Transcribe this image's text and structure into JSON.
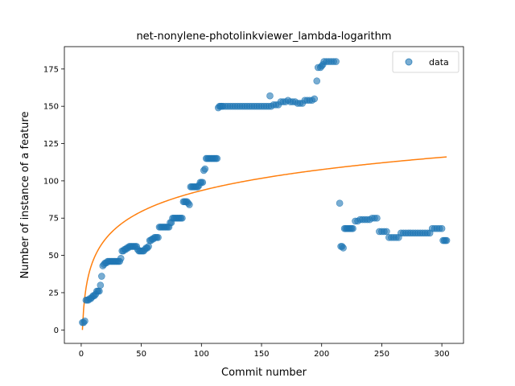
{
  "chart_data": {
    "type": "scatter",
    "title": "net-nonylene-photolinkviewer_lambda-logarithm",
    "xlabel": "Commit number",
    "ylabel": "Number of instance of a feature",
    "xlim": [
      -14,
      318
    ],
    "ylim": [
      -9,
      190
    ],
    "xticks": [
      0,
      50,
      100,
      150,
      200,
      250,
      300
    ],
    "yticks": [
      0,
      25,
      50,
      75,
      100,
      125,
      150,
      175
    ],
    "grid": false,
    "legend": {
      "position": "top-right",
      "entries": [
        "data"
      ]
    },
    "colors": {
      "points": "#1f77b4",
      "fit": "#ff7f0e"
    },
    "series": [
      {
        "name": "data",
        "kind": "points",
        "points": [
          [
            1,
            5
          ],
          [
            2,
            5
          ],
          [
            3,
            6
          ],
          [
            4,
            20
          ],
          [
            5,
            20
          ],
          [
            6,
            20
          ],
          [
            7,
            21
          ],
          [
            8,
            21
          ],
          [
            9,
            22
          ],
          [
            10,
            23
          ],
          [
            11,
            23
          ],
          [
            12,
            24
          ],
          [
            13,
            26
          ],
          [
            14,
            26
          ],
          [
            15,
            26
          ],
          [
            16,
            30
          ],
          [
            17,
            36
          ],
          [
            18,
            43
          ],
          [
            19,
            44
          ],
          [
            20,
            45
          ],
          [
            21,
            45
          ],
          [
            22,
            46
          ],
          [
            23,
            46
          ],
          [
            24,
            46
          ],
          [
            25,
            46
          ],
          [
            26,
            46
          ],
          [
            27,
            46
          ],
          [
            28,
            46
          ],
          [
            29,
            46
          ],
          [
            30,
            46
          ],
          [
            31,
            46
          ],
          [
            32,
            46
          ],
          [
            33,
            48
          ],
          [
            34,
            53
          ],
          [
            35,
            53
          ],
          [
            36,
            54
          ],
          [
            37,
            54
          ],
          [
            38,
            55
          ],
          [
            39,
            55
          ],
          [
            40,
            56
          ],
          [
            41,
            56
          ],
          [
            42,
            56
          ],
          [
            43,
            56
          ],
          [
            44,
            56
          ],
          [
            45,
            56
          ],
          [
            46,
            56
          ],
          [
            47,
            54
          ],
          [
            48,
            53
          ],
          [
            49,
            53
          ],
          [
            50,
            53
          ],
          [
            51,
            53
          ],
          [
            52,
            53
          ],
          [
            53,
            54
          ],
          [
            54,
            55
          ],
          [
            55,
            55
          ],
          [
            56,
            56
          ],
          [
            57,
            60
          ],
          [
            58,
            60
          ],
          [
            59,
            61
          ],
          [
            60,
            61
          ],
          [
            61,
            62
          ],
          [
            62,
            62
          ],
          [
            63,
            62
          ],
          [
            64,
            62
          ],
          [
            65,
            69
          ],
          [
            66,
            69
          ],
          [
            67,
            69
          ],
          [
            68,
            69
          ],
          [
            69,
            69
          ],
          [
            70,
            69
          ],
          [
            71,
            69
          ],
          [
            72,
            69
          ],
          [
            73,
            69
          ],
          [
            74,
            72
          ],
          [
            75,
            72
          ],
          [
            76,
            75
          ],
          [
            77,
            75
          ],
          [
            78,
            75
          ],
          [
            79,
            75
          ],
          [
            80,
            75
          ],
          [
            81,
            75
          ],
          [
            82,
            75
          ],
          [
            83,
            75
          ],
          [
            84,
            75
          ],
          [
            85,
            86
          ],
          [
            86,
            86
          ],
          [
            87,
            86
          ],
          [
            88,
            86
          ],
          [
            89,
            85
          ],
          [
            90,
            84
          ],
          [
            91,
            96
          ],
          [
            92,
            96
          ],
          [
            93,
            96
          ],
          [
            94,
            96
          ],
          [
            95,
            96
          ],
          [
            96,
            96
          ],
          [
            97,
            96
          ],
          [
            98,
            97
          ],
          [
            99,
            99
          ],
          [
            100,
            99
          ],
          [
            101,
            99
          ],
          [
            102,
            107
          ],
          [
            103,
            108
          ],
          [
            104,
            115
          ],
          [
            105,
            115
          ],
          [
            106,
            115
          ],
          [
            107,
            115
          ],
          [
            108,
            115
          ],
          [
            109,
            115
          ],
          [
            110,
            115
          ],
          [
            111,
            115
          ],
          [
            112,
            115
          ],
          [
            113,
            115
          ],
          [
            114,
            149
          ],
          [
            115,
            150
          ],
          [
            116,
            150
          ],
          [
            117,
            150
          ],
          [
            118,
            150
          ],
          [
            120,
            150
          ],
          [
            122,
            150
          ],
          [
            124,
            150
          ],
          [
            126,
            150
          ],
          [
            128,
            150
          ],
          [
            130,
            150
          ],
          [
            132,
            150
          ],
          [
            134,
            150
          ],
          [
            136,
            150
          ],
          [
            138,
            150
          ],
          [
            140,
            150
          ],
          [
            142,
            150
          ],
          [
            144,
            150
          ],
          [
            146,
            150
          ],
          [
            148,
            150
          ],
          [
            150,
            150
          ],
          [
            152,
            150
          ],
          [
            154,
            150
          ],
          [
            156,
            150
          ],
          [
            157,
            157
          ],
          [
            158,
            150
          ],
          [
            160,
            151
          ],
          [
            162,
            151
          ],
          [
            164,
            151
          ],
          [
            166,
            153
          ],
          [
            168,
            153
          ],
          [
            170,
            153
          ],
          [
            172,
            154
          ],
          [
            174,
            153
          ],
          [
            176,
            153
          ],
          [
            178,
            153
          ],
          [
            180,
            152
          ],
          [
            182,
            152
          ],
          [
            184,
            152
          ],
          [
            186,
            154
          ],
          [
            188,
            154
          ],
          [
            190,
            154
          ],
          [
            192,
            154
          ],
          [
            194,
            155
          ],
          [
            196,
            167
          ],
          [
            197,
            176
          ],
          [
            199,
            176
          ],
          [
            200,
            177
          ],
          [
            201,
            178
          ],
          [
            202,
            180
          ],
          [
            204,
            180
          ],
          [
            206,
            180
          ],
          [
            208,
            180
          ],
          [
            210,
            180
          ],
          [
            212,
            180
          ],
          [
            215,
            85
          ],
          [
            216,
            56
          ],
          [
            217,
            56
          ],
          [
            218,
            55
          ],
          [
            219,
            68
          ],
          [
            220,
            68
          ],
          [
            221,
            68
          ],
          [
            222,
            68
          ],
          [
            223,
            68
          ],
          [
            224,
            68
          ],
          [
            225,
            68
          ],
          [
            226,
            68
          ],
          [
            228,
            73
          ],
          [
            230,
            73
          ],
          [
            232,
            74
          ],
          [
            234,
            74
          ],
          [
            236,
            74
          ],
          [
            238,
            74
          ],
          [
            240,
            74
          ],
          [
            242,
            75
          ],
          [
            244,
            75
          ],
          [
            246,
            75
          ],
          [
            248,
            66
          ],
          [
            250,
            66
          ],
          [
            252,
            66
          ],
          [
            254,
            66
          ],
          [
            256,
            62
          ],
          [
            258,
            62
          ],
          [
            260,
            62
          ],
          [
            262,
            62
          ],
          [
            264,
            62
          ],
          [
            266,
            65
          ],
          [
            268,
            65
          ],
          [
            270,
            65
          ],
          [
            272,
            65
          ],
          [
            274,
            65
          ],
          [
            276,
            65
          ],
          [
            278,
            65
          ],
          [
            280,
            65
          ],
          [
            282,
            65
          ],
          [
            284,
            65
          ],
          [
            286,
            65
          ],
          [
            288,
            65
          ],
          [
            290,
            65
          ],
          [
            292,
            68
          ],
          [
            294,
            68
          ],
          [
            296,
            68
          ],
          [
            298,
            68
          ],
          [
            300,
            68
          ],
          [
            301,
            60
          ],
          [
            302,
            60
          ],
          [
            303,
            60
          ],
          [
            304,
            60
          ]
        ]
      },
      {
        "name": "",
        "kind": "line",
        "fit": {
          "a": 0.0,
          "b": 20.3,
          "x_start": 1,
          "x_end": 304
        }
      }
    ]
  }
}
